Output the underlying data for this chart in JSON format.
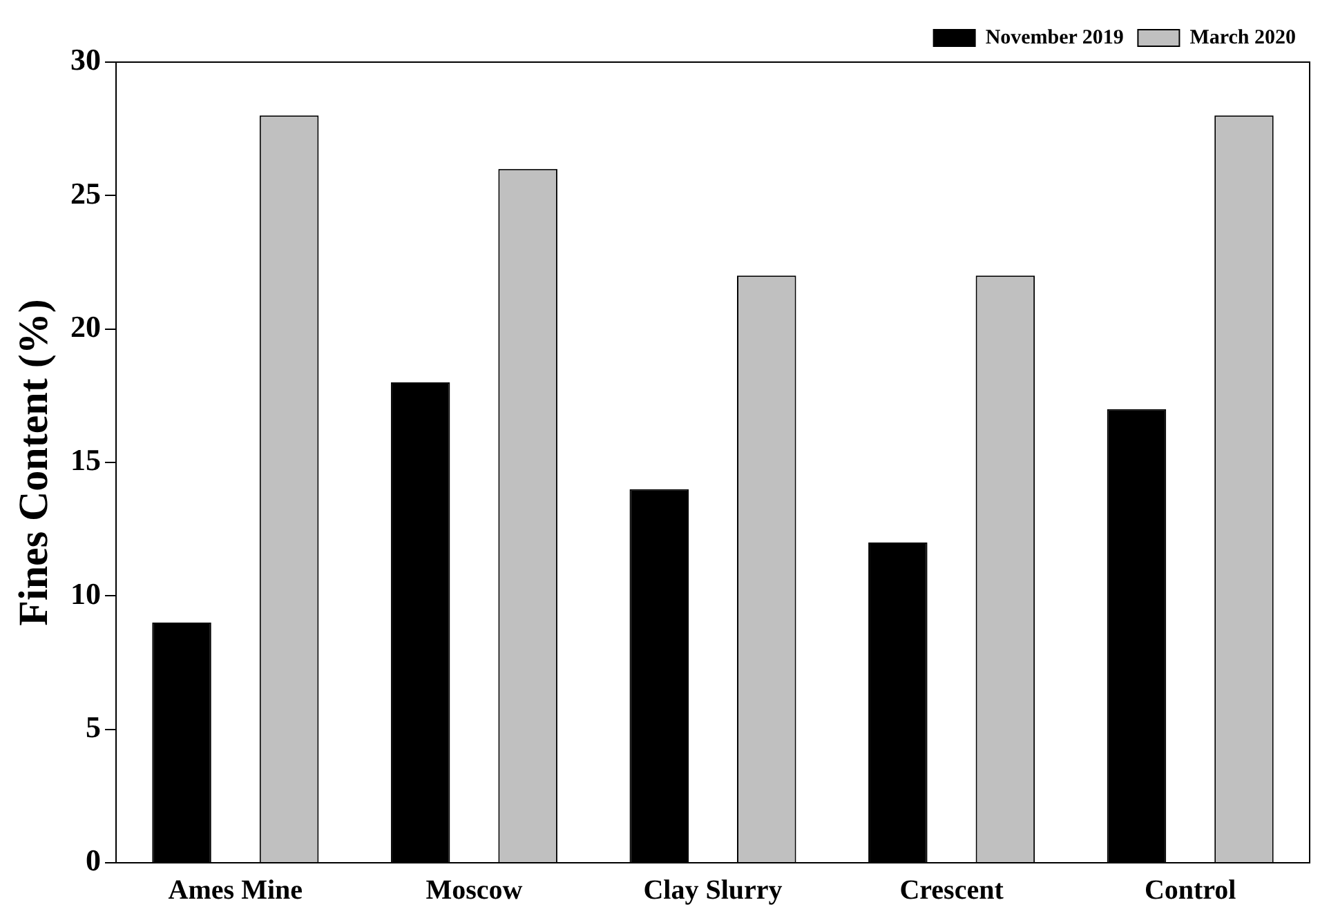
{
  "chart_data": {
    "type": "bar",
    "ylabel": "Fines Content (%)",
    "categories": [
      "Ames Mine",
      "Moscow",
      "Clay Slurry",
      "Crescent",
      "Control"
    ],
    "series": [
      {
        "name": "November 2019",
        "color": "#000000",
        "values": [
          9,
          18,
          14,
          12,
          17
        ]
      },
      {
        "name": "March 2020",
        "color": "#c0c0c0",
        "values": [
          28,
          26,
          22,
          22,
          28
        ]
      }
    ],
    "ylim": [
      0,
      30
    ],
    "yticks": [
      0,
      5,
      10,
      15,
      20,
      25,
      30
    ],
    "grid": false,
    "legend": "top right"
  }
}
